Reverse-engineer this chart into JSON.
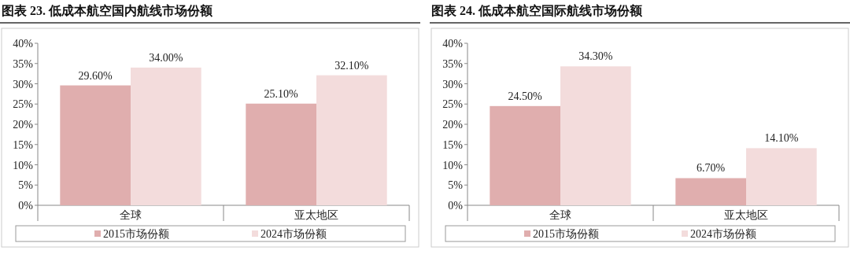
{
  "chart_data": [
    {
      "type": "bar",
      "title": "图表 23. 低成本航空国内航线市场份额",
      "categories": [
        "全球",
        "亚太地区"
      ],
      "series": [
        {
          "name": "2015市场份额",
          "color": "#e0aeae",
          "values": [
            29.6,
            25.1
          ],
          "value_labels": [
            "29.60%",
            "25.10%"
          ]
        },
        {
          "name": "2024市场份额",
          "color": "#f3dcdc",
          "values": [
            34.0,
            32.1
          ],
          "value_labels": [
            "34.00%",
            "32.10%"
          ]
        }
      ],
      "ylim": [
        0,
        40
      ],
      "yticks": [
        {
          "value": 0,
          "label": "0%"
        },
        {
          "value": 5,
          "label": "5%"
        },
        {
          "value": 10,
          "label": "10%"
        },
        {
          "value": 15,
          "label": "15%"
        },
        {
          "value": 20,
          "label": "20%"
        },
        {
          "value": 25,
          "label": "25%"
        },
        {
          "value": 30,
          "label": "30%"
        },
        {
          "value": 35,
          "label": "35%"
        },
        {
          "value": 40,
          "label": "40%"
        }
      ],
      "legend": "bottom"
    },
    {
      "type": "bar",
      "title": "图表 24. 低成本航空国际航线市场份额",
      "categories": [
        "全球",
        "亚太地区"
      ],
      "series": [
        {
          "name": "2015市场份额",
          "color": "#e0aeae",
          "values": [
            24.5,
            6.7
          ],
          "value_labels": [
            "24.50%",
            "6.70%"
          ]
        },
        {
          "name": "2024市场份额",
          "color": "#f3dcdc",
          "values": [
            34.3,
            14.1
          ],
          "value_labels": [
            "34.30%",
            "14.10%"
          ]
        }
      ],
      "ylim": [
        0,
        40
      ],
      "yticks": [
        {
          "value": 0,
          "label": "0%"
        },
        {
          "value": 5,
          "label": "5%"
        },
        {
          "value": 10,
          "label": "10%"
        },
        {
          "value": 15,
          "label": "15%"
        },
        {
          "value": 20,
          "label": "20%"
        },
        {
          "value": 25,
          "label": "25%"
        },
        {
          "value": 30,
          "label": "30%"
        },
        {
          "value": 35,
          "label": "35%"
        },
        {
          "value": 40,
          "label": "40%"
        }
      ],
      "legend": "bottom"
    }
  ]
}
